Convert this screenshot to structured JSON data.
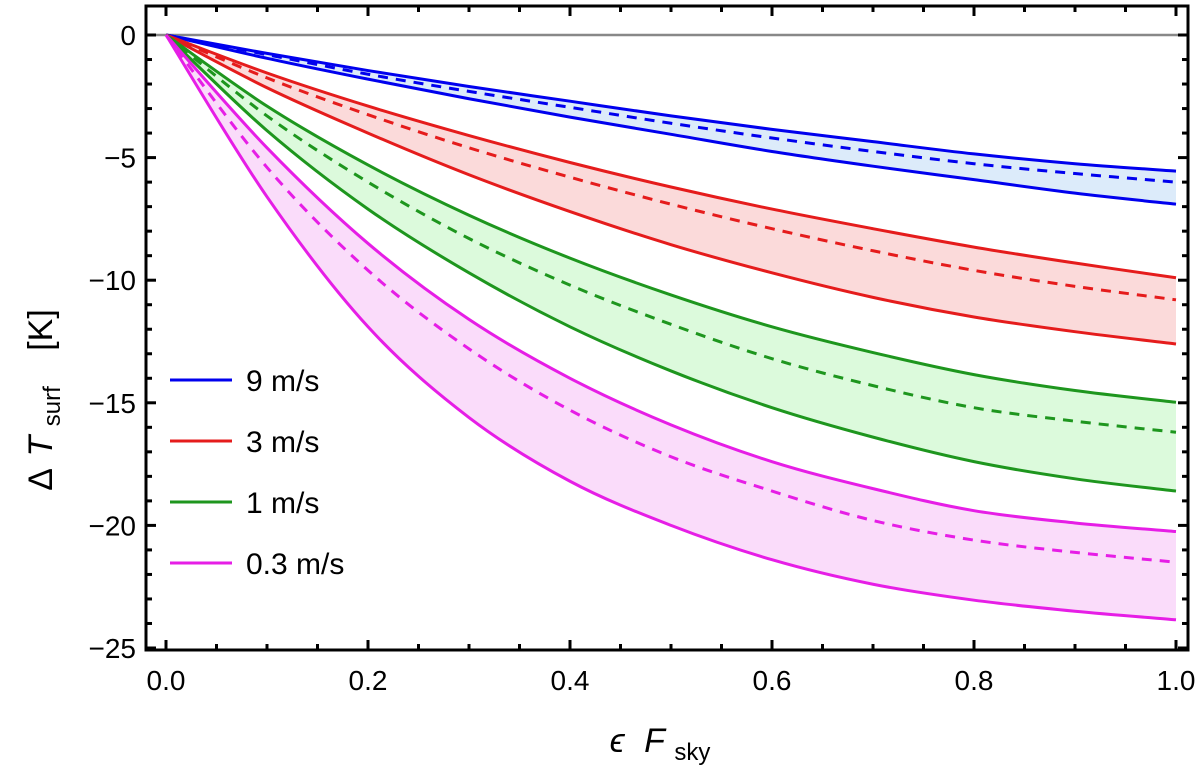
{
  "chart_data": {
    "type": "line",
    "title": "",
    "xlabel": {
      "symbol": "ϵ",
      "var": "F",
      "sub": "sky"
    },
    "ylabel": {
      "delta": "Δ",
      "var": "T",
      "sub": "surf",
      "unit": "[K]"
    },
    "xlim": [
      0,
      1
    ],
    "ylim": [
      -25,
      0
    ],
    "x_ticks": [
      "0.0",
      "0.2",
      "0.4",
      "0.6",
      "0.8",
      "1.0"
    ],
    "x_tick_values": [
      0,
      0.2,
      0.4,
      0.6,
      0.8,
      1.0
    ],
    "y_ticks": [
      "0",
      "−5",
      "−10",
      "−15",
      "−20",
      "−25"
    ],
    "y_tick_values": [
      0,
      -5,
      -10,
      -15,
      -20,
      -25
    ],
    "legend_position": "lower-left",
    "x": [
      0,
      0.1,
      0.2,
      0.3,
      0.4,
      0.5,
      0.6,
      0.7,
      0.8,
      0.9,
      1.0
    ],
    "series": [
      {
        "name": "9 m/s",
        "color": "#0000ee",
        "fill": "#dcebfa",
        "upper": [
          0,
          -0.75,
          -1.45,
          -2.1,
          -2.7,
          -3.3,
          -3.85,
          -4.35,
          -4.85,
          -5.25,
          -5.55
        ],
        "dashed": [
          0,
          -0.8,
          -1.6,
          -2.3,
          -2.95,
          -3.6,
          -4.2,
          -4.75,
          -5.25,
          -5.65,
          -6.0
        ],
        "lower": [
          0,
          -0.95,
          -1.8,
          -2.6,
          -3.35,
          -4.05,
          -4.75,
          -5.35,
          -5.9,
          -6.45,
          -6.9
        ]
      },
      {
        "name": "3 m/s",
        "color": "#e51c1c",
        "fill": "#fbdada",
        "upper": [
          0,
          -1.55,
          -2.9,
          -4.1,
          -5.2,
          -6.2,
          -7.1,
          -7.9,
          -8.65,
          -9.3,
          -9.9
        ],
        "dashed": [
          0,
          -1.75,
          -3.25,
          -4.6,
          -5.8,
          -6.9,
          -7.9,
          -8.8,
          -9.6,
          -10.25,
          -10.8
        ],
        "lower": [
          0,
          -2.15,
          -4.0,
          -5.7,
          -7.2,
          -8.55,
          -9.7,
          -10.7,
          -11.5,
          -12.1,
          -12.6
        ]
      },
      {
        "name": "1 m/s",
        "color": "#1e961e",
        "fill": "#dcfadc",
        "upper": [
          0,
          -2.9,
          -5.3,
          -7.35,
          -9.1,
          -10.6,
          -11.9,
          -12.95,
          -13.85,
          -14.5,
          -14.98
        ],
        "dashed": [
          0,
          -3.3,
          -6.0,
          -8.3,
          -10.2,
          -11.8,
          -13.2,
          -14.3,
          -15.2,
          -15.75,
          -16.2
        ],
        "lower": [
          0,
          -3.9,
          -7.1,
          -9.7,
          -11.9,
          -13.7,
          -15.2,
          -16.4,
          -17.4,
          -18.1,
          -18.6
        ]
      },
      {
        "name": "0.3 m/s",
        "color": "#e61ee6",
        "fill": "#fadcfa",
        "upper": [
          0,
          -4.6,
          -8.5,
          -11.6,
          -14.0,
          -15.9,
          -17.4,
          -18.5,
          -19.4,
          -19.9,
          -20.25
        ],
        "dashed": [
          0,
          -5.4,
          -9.6,
          -12.8,
          -15.3,
          -17.2,
          -18.6,
          -19.8,
          -20.6,
          -21.1,
          -21.5
        ],
        "lower": [
          0,
          -6.6,
          -11.9,
          -15.6,
          -18.2,
          -20.0,
          -21.4,
          -22.4,
          -23.05,
          -23.5,
          -23.85
        ]
      }
    ]
  }
}
